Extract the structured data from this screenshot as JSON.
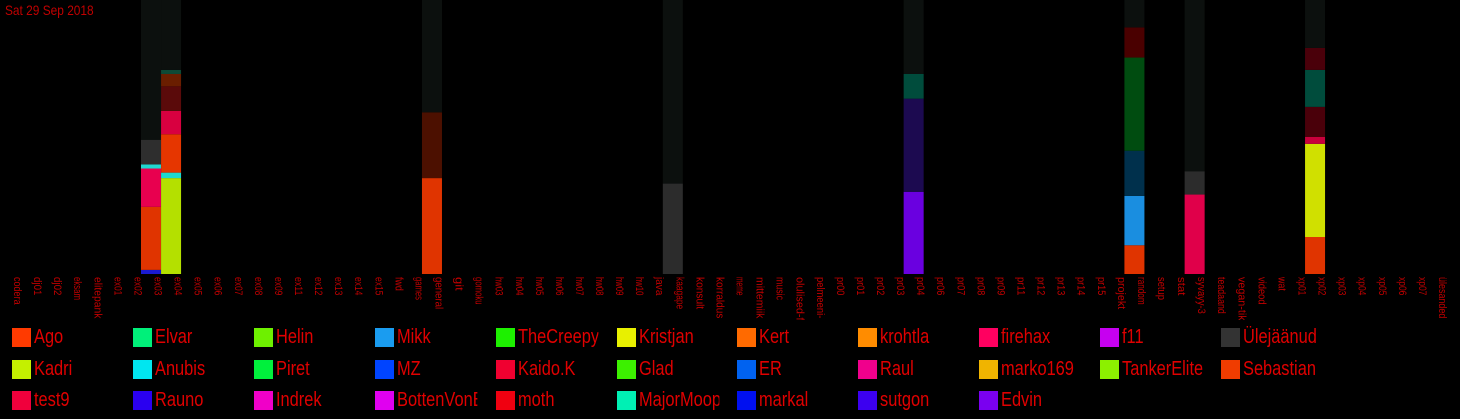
{
  "header": {
    "date": "Sat 29 Sep 2018"
  },
  "chart_data": {
    "type": "bar",
    "stacked": true,
    "ylim": [
      0,
      100
    ],
    "categories": [
      "codera",
      "dj01",
      "dj02",
      "eksam",
      "elitepank",
      "ex01",
      "ex02",
      "ex03",
      "ex04",
      "ex05",
      "ex06",
      "ex07",
      "ex08",
      "ex09",
      "ex11",
      "ex12",
      "ex13",
      "ex14",
      "ex15",
      "fwd",
      "games",
      "general",
      "git",
      "gomoku",
      "hw03",
      "hw04",
      "hw05",
      "hw06",
      "hw07",
      "hw08",
      "hw09",
      "hw10",
      "java",
      "kaagape",
      "konsult",
      "korraldus",
      "meme",
      "mittemiik",
      "music",
      "olulised-fi",
      "pelmeeni-",
      "pr00",
      "pr01",
      "pr02",
      "pr03",
      "pr04",
      "pr06",
      "pr07",
      "pr08",
      "pr09",
      "pr11",
      "pr12",
      "pr13",
      "pr14",
      "pr15",
      "projekt",
      "random",
      "setup",
      "stat",
      "syvayy-3",
      "teadaand",
      "vegan-tiki",
      "videod",
      "wat",
      "xp01",
      "xp02",
      "xp03",
      "xp04",
      "xp05",
      "xp06",
      "xp07",
      "ülesanded"
    ],
    "legend": [
      {
        "name": "Ago",
        "color": "#ff3a00"
      },
      {
        "name": "Elvar",
        "color": "#00f07a"
      },
      {
        "name": "Helin",
        "color": "#6ef000"
      },
      {
        "name": "Mikk",
        "color": "#1a9cf0"
      },
      {
        "name": "TheCreepySh",
        "color": "#1df000"
      },
      {
        "name": "Kristjan",
        "color": "#e8f000"
      },
      {
        "name": "Kert",
        "color": "#ff6a00"
      },
      {
        "name": "krohtla",
        "color": "#ff8c00"
      },
      {
        "name": "firehax",
        "color": "#ff0060"
      },
      {
        "name": "f11",
        "color": "#c600f0"
      },
      {
        "name": "Ülejäänud",
        "color": "#333333"
      },
      {
        "name": "Kadri",
        "color": "#c4f000"
      },
      {
        "name": "Anubis",
        "color": "#00e6f0"
      },
      {
        "name": "Piret",
        "color": "#00f03c"
      },
      {
        "name": "MZ",
        "color": "#0044ff"
      },
      {
        "name": "Kaido.K",
        "color": "#f00030"
      },
      {
        "name": "Glad",
        "color": "#3cf000"
      },
      {
        "name": "ER",
        "color": "#0062f0"
      },
      {
        "name": "Raul",
        "color": "#f0008c"
      },
      {
        "name": "marko169",
        "color": "#f0b400"
      },
      {
        "name": "TankerElite",
        "color": "#8cf000"
      },
      {
        "name": "Sebastian",
        "color": "#f03c00"
      },
      {
        "name": "test9",
        "color": "#f0003c"
      },
      {
        "name": "Rauno",
        "color": "#2a00f0"
      },
      {
        "name": "Indrek",
        "color": "#f000c8"
      },
      {
        "name": "BottenVonBot",
        "color": "#e000f0"
      },
      {
        "name": "moth",
        "color": "#f00010"
      },
      {
        "name": "MajorMoopsy",
        "color": "#00f0b4"
      },
      {
        "name": "markal",
        "color": "#0010f0"
      },
      {
        "name": "sutgon",
        "color": "#3c00f0"
      },
      {
        "name": "Edvin",
        "color": "#7a00f0"
      }
    ],
    "series_values": [
      {
        "category": "ex03",
        "stack": [
          {
            "color": "#1a1ad0",
            "value": 1.5
          },
          {
            "color": "#e03400",
            "value": 23
          },
          {
            "color": "#e8004f",
            "value": 14
          },
          {
            "color": "#1ed8d0",
            "value": 1.5
          },
          {
            "color": "#2e2e2e",
            "value": 9
          },
          {
            "color": "#0c100e",
            "value": 51
          }
        ]
      },
      {
        "category": "ex04",
        "stack": [
          {
            "color": "#b4e000",
            "value": 35
          },
          {
            "color": "#1ed8d0",
            "value": 2
          },
          {
            "color": "#e63600",
            "value": 14
          },
          {
            "color": "#d80040",
            "value": 8.5
          },
          {
            "color": "#5a0a0a",
            "value": 9
          },
          {
            "color": "#6a1e00",
            "value": 4.5
          },
          {
            "color": "#0e4a36",
            "value": 1.5
          },
          {
            "color": "#0c100e",
            "value": 25.5
          }
        ]
      },
      {
        "category": "general",
        "stack": [
          {
            "color": "#e03400",
            "value": 35
          },
          {
            "color": "#4c1000",
            "value": 24
          },
          {
            "color": "#0c100e",
            "value": 41
          }
        ]
      },
      {
        "category": "kaagape",
        "stack": [
          {
            "color": "#2c2c2c",
            "value": 33
          },
          {
            "color": "#0c100e",
            "value": 67
          }
        ]
      },
      {
        "category": "pr04",
        "stack": [
          {
            "color": "#6a00e0",
            "value": 30
          },
          {
            "color": "#1c0a50",
            "value": 34
          },
          {
            "color": "#004c3c",
            "value": 9
          },
          {
            "color": "#0c100e",
            "value": 27
          }
        ]
      },
      {
        "category": "random",
        "stack": [
          {
            "color": "#e03400",
            "value": 10.5
          },
          {
            "color": "#1a8ee0",
            "value": 18
          },
          {
            "color": "#00304c",
            "value": 16.5
          },
          {
            "color": "#004c10",
            "value": 34
          },
          {
            "color": "#4a0000",
            "value": 11
          },
          {
            "color": "#0c100e",
            "value": 10
          }
        ]
      },
      {
        "category": "syvayy-3",
        "stack": [
          {
            "color": "#e0004a",
            "value": 29
          },
          {
            "color": "#2c2c2c",
            "value": 8.5
          },
          {
            "color": "#0c100e",
            "value": 62.5
          }
        ]
      },
      {
        "category": "xp02",
        "stack": [
          {
            "color": "#e03400",
            "value": 13.5
          },
          {
            "color": "#d0e000",
            "value": 34
          },
          {
            "color": "#c8003c",
            "value": 2.5
          },
          {
            "color": "#4a000a",
            "value": 11
          },
          {
            "color": "#004c3c",
            "value": 13.5
          },
          {
            "color": "#4a000a",
            "value": 8
          },
          {
            "color": "#0c100e",
            "value": 17.5
          }
        ]
      }
    ]
  }
}
